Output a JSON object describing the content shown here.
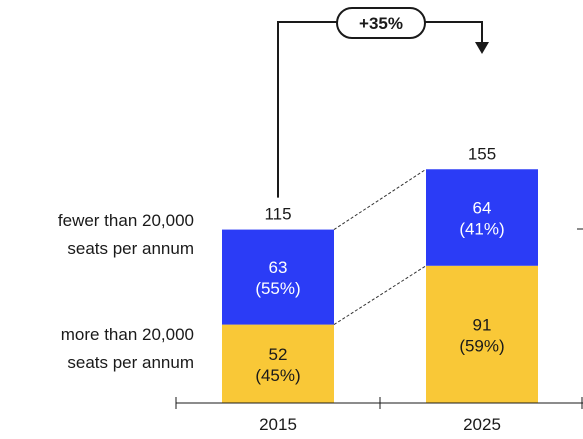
{
  "chart_data": {
    "type": "bar",
    "stacked": true,
    "categories": [
      "2015",
      "2025"
    ],
    "totals": [
      115,
      155
    ],
    "totals_labels": [
      "115",
      "155"
    ],
    "series": [
      {
        "name": "more than 20,000 seats per annum",
        "legend_lines": [
          "more than 20,000",
          "seats per annum"
        ],
        "values": [
          52,
          91
        ],
        "value_labels": [
          "52",
          "91"
        ],
        "share_labels": [
          "(45%)",
          "(59%)"
        ],
        "color": "#F9C837"
      },
      {
        "name": "fewer than 20,000 seats per annum",
        "legend_lines": [
          "fewer than 20,000",
          "seats per annum"
        ],
        "values": [
          63,
          64
        ],
        "value_labels": [
          "63",
          "64"
        ],
        "share_labels": [
          "(55%)",
          "(41%)"
        ],
        "color": "#2B3CF6"
      }
    ],
    "growth_label": "+35%",
    "xlabel": "",
    "ylabel": "",
    "grid": false
  }
}
